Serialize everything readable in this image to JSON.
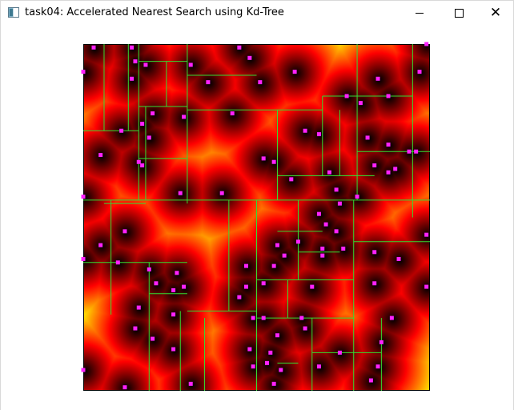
{
  "window": {
    "title": "task04: Accelerated Nearest Search using Kd-Tree",
    "icon": "app-window-icon",
    "controls": [
      "minimize-icon",
      "maximize-icon",
      "close-icon"
    ],
    "close_glyph": "✕"
  },
  "visualization": {
    "colors": {
      "point": "#ff22ff",
      "split_line": "#33dd33",
      "near": "#000000",
      "mid": "#cc0000",
      "far": "#ffee00"
    },
    "points": [
      [
        0.03,
        0.01
      ],
      [
        0.0,
        0.08
      ],
      [
        0.14,
        0.01
      ],
      [
        0.15,
        0.05
      ],
      [
        0.14,
        0.1
      ],
      [
        0.18,
        0.06
      ],
      [
        0.31,
        0.06
      ],
      [
        0.36,
        0.11
      ],
      [
        0.45,
        0.01
      ],
      [
        0.51,
        0.11
      ],
      [
        0.48,
        0.04
      ],
      [
        0.61,
        0.08
      ],
      [
        0.76,
        0.15
      ],
      [
        0.85,
        0.1
      ],
      [
        0.8,
        0.17
      ],
      [
        0.64,
        0.25
      ],
      [
        0.68,
        0.26
      ],
      [
        0.88,
        0.15
      ],
      [
        0.99,
        0.0
      ],
      [
        0.97,
        0.08
      ],
      [
        0.96,
        0.31
      ],
      [
        0.82,
        0.27
      ],
      [
        0.88,
        0.29
      ],
      [
        0.9,
        0.36
      ],
      [
        0.11,
        0.25
      ],
      [
        0.2,
        0.2
      ],
      [
        0.17,
        0.23
      ],
      [
        0.19,
        0.27
      ],
      [
        0.29,
        0.21
      ],
      [
        0.43,
        0.2
      ],
      [
        0.55,
        0.34
      ],
      [
        0.52,
        0.33
      ],
      [
        0.05,
        0.32
      ],
      [
        0.0,
        0.44
      ],
      [
        0.17,
        0.35
      ],
      [
        0.16,
        0.34
      ],
      [
        0.28,
        0.43
      ],
      [
        0.4,
        0.43
      ],
      [
        0.6,
        0.39
      ],
      [
        0.73,
        0.42
      ],
      [
        0.71,
        0.37
      ],
      [
        0.74,
        0.46
      ],
      [
        0.84,
        0.35
      ],
      [
        0.79,
        0.44
      ],
      [
        0.88,
        0.37
      ],
      [
        0.94,
        0.31
      ],
      [
        0.68,
        0.49
      ],
      [
        0.7,
        0.52
      ],
      [
        0.05,
        0.58
      ],
      [
        0.12,
        0.54
      ],
      [
        0.0,
        0.62
      ],
      [
        0.1,
        0.63
      ],
      [
        0.19,
        0.65
      ],
      [
        0.21,
        0.69
      ],
      [
        0.29,
        0.7
      ],
      [
        0.27,
        0.66
      ],
      [
        0.26,
        0.71
      ],
      [
        0.47,
        0.64
      ],
      [
        0.47,
        0.7
      ],
      [
        0.62,
        0.57
      ],
      [
        0.58,
        0.61
      ],
      [
        0.56,
        0.58
      ],
      [
        0.52,
        0.69
      ],
      [
        0.55,
        0.64
      ],
      [
        0.66,
        0.7
      ],
      [
        0.69,
        0.61
      ],
      [
        0.69,
        0.59
      ],
      [
        0.73,
        0.54
      ],
      [
        0.75,
        0.59
      ],
      [
        0.84,
        0.6
      ],
      [
        0.91,
        0.62
      ],
      [
        0.99,
        0.55
      ],
      [
        0.84,
        0.69
      ],
      [
        0.99,
        0.7
      ],
      [
        0.16,
        0.76
      ],
      [
        0.15,
        0.82
      ],
      [
        0.2,
        0.85
      ],
      [
        0.26,
        0.78
      ],
      [
        0.45,
        0.73
      ],
      [
        0.49,
        0.79
      ],
      [
        0.52,
        0.79
      ],
      [
        0.56,
        0.84
      ],
      [
        0.54,
        0.89
      ],
      [
        0.48,
        0.88
      ],
      [
        0.0,
        0.94
      ],
      [
        0.12,
        0.99
      ],
      [
        0.26,
        0.88
      ],
      [
        0.31,
        0.98
      ],
      [
        0.49,
        0.93
      ],
      [
        0.53,
        0.92
      ],
      [
        0.55,
        0.98
      ],
      [
        0.57,
        0.94
      ],
      [
        0.63,
        0.79
      ],
      [
        0.68,
        0.93
      ],
      [
        0.74,
        0.89
      ],
      [
        0.86,
        0.86
      ],
      [
        0.89,
        0.79
      ],
      [
        0.85,
        0.93
      ],
      [
        0.83,
        0.97
      ],
      [
        0.64,
        0.82
      ]
    ],
    "splits": [
      [
        "v",
        0.3,
        0,
        0.46
      ],
      [
        "h",
        0.45,
        0,
        1
      ],
      [
        "v",
        0.5,
        0.45,
        1
      ],
      [
        "v",
        0.16,
        0,
        0.45
      ],
      [
        "h",
        0.18,
        0.16,
        0.3
      ],
      [
        "v",
        0.06,
        0,
        0.25
      ],
      [
        "h",
        0.25,
        0,
        0.16
      ],
      [
        "v",
        0.13,
        0,
        0.25
      ],
      [
        "v",
        0.18,
        0.18,
        0.45
      ],
      [
        "h",
        0.05,
        0.16,
        0.3
      ],
      [
        "h",
        0.19,
        0.3,
        0.69
      ],
      [
        "v",
        0.56,
        0.19,
        0.45
      ],
      [
        "h",
        0.38,
        0.56,
        0.84
      ],
      [
        "v",
        0.69,
        0.15,
        0.38
      ],
      [
        "v",
        0.79,
        0,
        0.45
      ],
      [
        "h",
        0.15,
        0.69,
        0.95
      ],
      [
        "v",
        0.95,
        0,
        0.5
      ],
      [
        "h",
        0.31,
        0.79,
        1
      ],
      [
        "h",
        0.33,
        0.16,
        0.3
      ],
      [
        "v",
        0.08,
        0.45,
        0.78
      ],
      [
        "h",
        0.63,
        0,
        0.3
      ],
      [
        "v",
        0.19,
        0.63,
        1
      ],
      [
        "h",
        0.77,
        0.3,
        0.5
      ],
      [
        "v",
        0.42,
        0.45,
        0.77
      ],
      [
        "h",
        0.68,
        0.5,
        0.78
      ],
      [
        "v",
        0.78,
        0.45,
        1
      ],
      [
        "h",
        0.57,
        0.78,
        1
      ],
      [
        "h",
        0.79,
        0.5,
        0.78
      ],
      [
        "v",
        0.66,
        0.79,
        1
      ],
      [
        "v",
        0.86,
        0.79,
        1
      ],
      [
        "h",
        0.89,
        0.66,
        0.86
      ],
      [
        "v",
        0.28,
        0.77,
        1
      ],
      [
        "h",
        0.46,
        0.06,
        0.18
      ],
      [
        "v",
        0.24,
        0.05,
        0.18
      ],
      [
        "h",
        0.54,
        0.56,
        0.69
      ],
      [
        "v",
        0.62,
        0.45,
        0.68
      ],
      [
        "h",
        0.72,
        0.19,
        0.3
      ],
      [
        "h",
        0.09,
        0.3,
        0.5
      ],
      [
        "v",
        0.35,
        0.79,
        1
      ],
      [
        "v",
        0.59,
        0.68,
        0.79
      ],
      [
        "h",
        0.92,
        0.56,
        0.62
      ],
      [
        "v",
        0.74,
        0.19,
        0.38
      ],
      [
        "h",
        0.6,
        0.62,
        0.74
      ]
    ]
  }
}
